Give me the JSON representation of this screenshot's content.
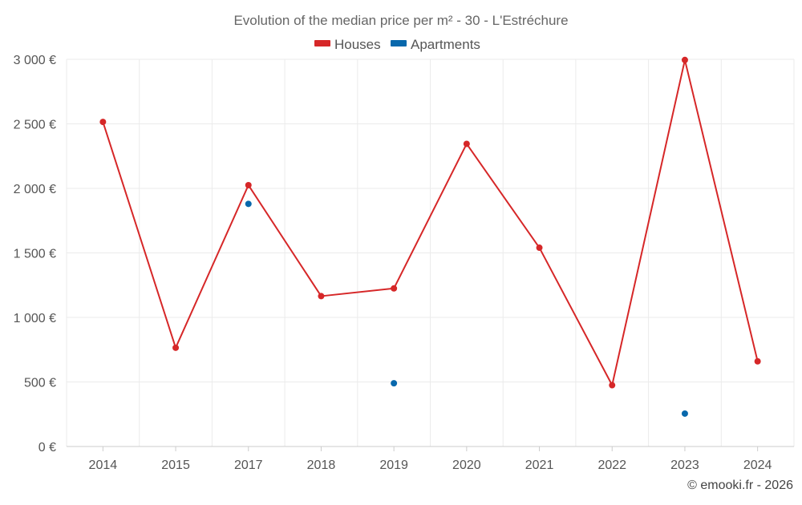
{
  "chart_data": {
    "type": "line",
    "title": "Evolution of the median price per m² - 30 - L'Estréchure",
    "categories": [
      "2014",
      "2015",
      "2017",
      "2018",
      "2019",
      "2020",
      "2021",
      "2022",
      "2023",
      "2024"
    ],
    "y_ticks": [
      "0 €",
      "500 €",
      "1 000 €",
      "1 500 €",
      "2 000 €",
      "2 500 €",
      "3 000 €"
    ],
    "ylim": [
      0,
      3000
    ],
    "grid": true,
    "legend_position": "top-center",
    "series": [
      {
        "name": "Houses",
        "color": "#d62728",
        "values": [
          2515,
          765,
          2025,
          1165,
          1225,
          2345,
          1540,
          475,
          2995,
          660
        ]
      },
      {
        "name": "Apartments",
        "color": "#0868ac",
        "values": [
          null,
          null,
          1880,
          null,
          490,
          null,
          null,
          null,
          255,
          null
        ]
      }
    ],
    "credit": "© emooki.fr - 2026"
  }
}
